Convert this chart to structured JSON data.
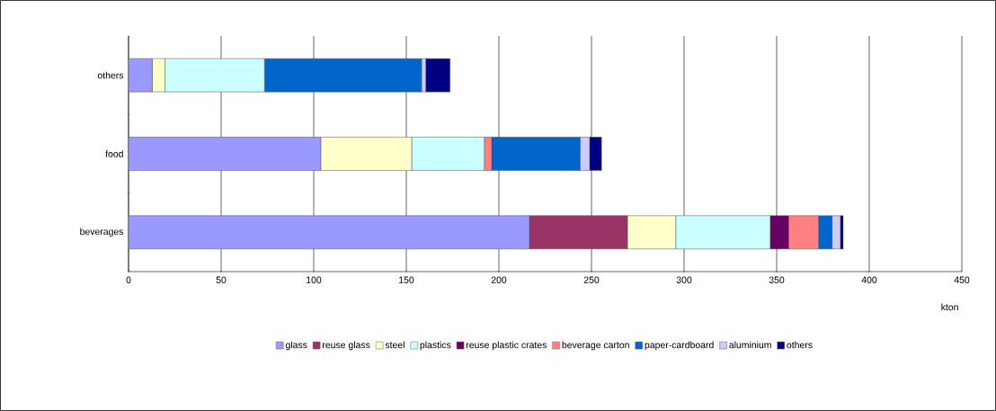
{
  "chart_data": {
    "type": "bar",
    "orientation": "horizontal",
    "stacked": true,
    "categories": [
      "others",
      "food",
      "beverages"
    ],
    "series": [
      {
        "name": "glass",
        "color": "#9999ff",
        "values": [
          12.8,
          103.8,
          216.5
        ]
      },
      {
        "name": "reuse glass",
        "color": "#993366",
        "values": [
          null,
          null,
          52.9
        ]
      },
      {
        "name": "steel",
        "color": "#ffffcc",
        "values": [
          6.9,
          49.1,
          26.1
        ]
      },
      {
        "name": "plastics",
        "color": "#ccffff",
        "values": [
          53.7,
          39.2,
          51.0
        ]
      },
      {
        "name": "reuse plastic crates",
        "color": "#660066",
        "values": [
          null,
          null,
          9.9
        ]
      },
      {
        "name": "beverage carton",
        "color": "#ff8080",
        "values": [
          null,
          4.0,
          16.2
        ]
      },
      {
        "name": "paper-cardboard",
        "color": "#0066cc",
        "values": [
          84.8,
          47.7,
          7.3
        ]
      },
      {
        "name": "aluminium",
        "color": "#ccccff",
        "values": [
          2.3,
          5.2,
          4.5
        ]
      },
      {
        "name": "others",
        "color": "#000080",
        "values": [
          13.1,
          6.4,
          1.5
        ]
      }
    ],
    "xlabel": "kton",
    "xlim": [
      0,
      450
    ],
    "xticks": [
      0,
      50,
      100,
      150,
      200,
      250,
      300,
      350,
      400,
      450
    ],
    "grid": "x",
    "legend": "bottom"
  }
}
